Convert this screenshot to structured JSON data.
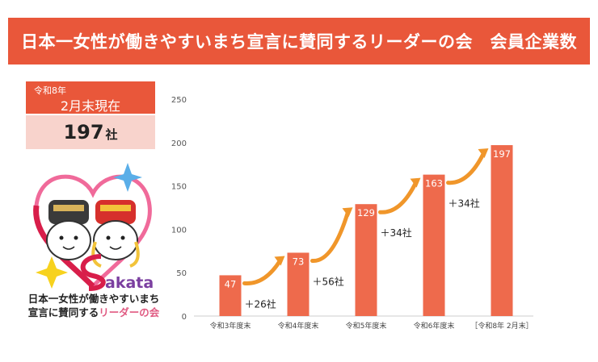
{
  "banner": {
    "title": "日本一女性が働きやすいまち宣言に賛同するリーダーの会　会員企業数"
  },
  "asof": {
    "era": "令和8年",
    "date": "2月末現在"
  },
  "current": {
    "count": "197",
    "unit": "社"
  },
  "logo": {
    "word": "akata",
    "line1": "日本一女性が働きやすいまち",
    "line2_prefix": "宣言に賛同する",
    "line2_accent": "リーダーの会"
  },
  "colors": {
    "bar": "#ee6a4c",
    "banner": "#e9573a",
    "arrow": "#f0962a",
    "countbox": "#f8d3cc"
  },
  "chart_data": {
    "type": "bar",
    "categories": [
      "令和3年度末",
      "令和4年度末",
      "令和5年度末",
      "令和6年度末",
      "［令和8年 2月末］"
    ],
    "values": [
      47,
      73,
      129,
      163,
      197
    ],
    "value_labels": [
      "47",
      "73",
      "129",
      "163",
      "197"
    ],
    "increments": [
      "＋26社",
      "＋56社",
      "＋34社",
      "＋34社"
    ],
    "yticks": [
      0,
      50,
      100,
      150,
      200,
      250
    ],
    "ytick_labels": [
      "0",
      "50",
      "100",
      "150",
      "200",
      "250"
    ],
    "ylim": [
      0,
      250
    ],
    "title": "",
    "xlabel": "",
    "ylabel": "",
    "grid": false
  }
}
